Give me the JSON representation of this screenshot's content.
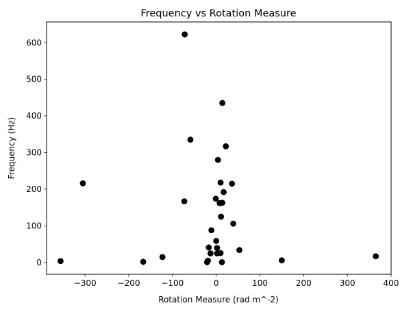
{
  "chart_data": {
    "type": "scatter",
    "title": "Frequency vs Rotation Measure",
    "xlabel": "Rotation Measure (rad m^-2)",
    "ylabel": "Frequency (Hz)",
    "xlim": [
      -388,
      400
    ],
    "ylim": [
      -32,
      656
    ],
    "xticks": [
      -300,
      -200,
      -100,
      0,
      100,
      200,
      300,
      400
    ],
    "yticks": [
      0,
      100,
      200,
      300,
      400,
      500,
      600
    ],
    "grid": false,
    "legend": "none",
    "marker_color": "#000000",
    "points": [
      {
        "x": -356,
        "y": 4
      },
      {
        "x": -305,
        "y": 216
      },
      {
        "x": -167,
        "y": 2
      },
      {
        "x": -123,
        "y": 15
      },
      {
        "x": -72,
        "y": 622
      },
      {
        "x": -73,
        "y": 167
      },
      {
        "x": -59,
        "y": 335
      },
      {
        "x": -21,
        "y": 1
      },
      {
        "x": -19,
        "y": 5
      },
      {
        "x": -17,
        "y": 41
      },
      {
        "x": -13,
        "y": 25
      },
      {
        "x": -11,
        "y": 88
      },
      {
        "x": -1,
        "y": 174
      },
      {
        "x": 0,
        "y": 59
      },
      {
        "x": 2,
        "y": 40
      },
      {
        "x": 2,
        "y": 25
      },
      {
        "x": 4,
        "y": 280
      },
      {
        "x": 8,
        "y": 162
      },
      {
        "x": 10,
        "y": 218
      },
      {
        "x": 11,
        "y": 125
      },
      {
        "x": 10,
        "y": 26
      },
      {
        "x": 13,
        "y": 1
      },
      {
        "x": 14,
        "y": 163
      },
      {
        "x": 14,
        "y": 435
      },
      {
        "x": 17,
        "y": 192
      },
      {
        "x": 22,
        "y": 317
      },
      {
        "x": 36,
        "y": 215
      },
      {
        "x": 39,
        "y": 106
      },
      {
        "x": 53,
        "y": 34
      },
      {
        "x": 150,
        "y": 6
      },
      {
        "x": 365,
        "y": 17
      }
    ]
  }
}
